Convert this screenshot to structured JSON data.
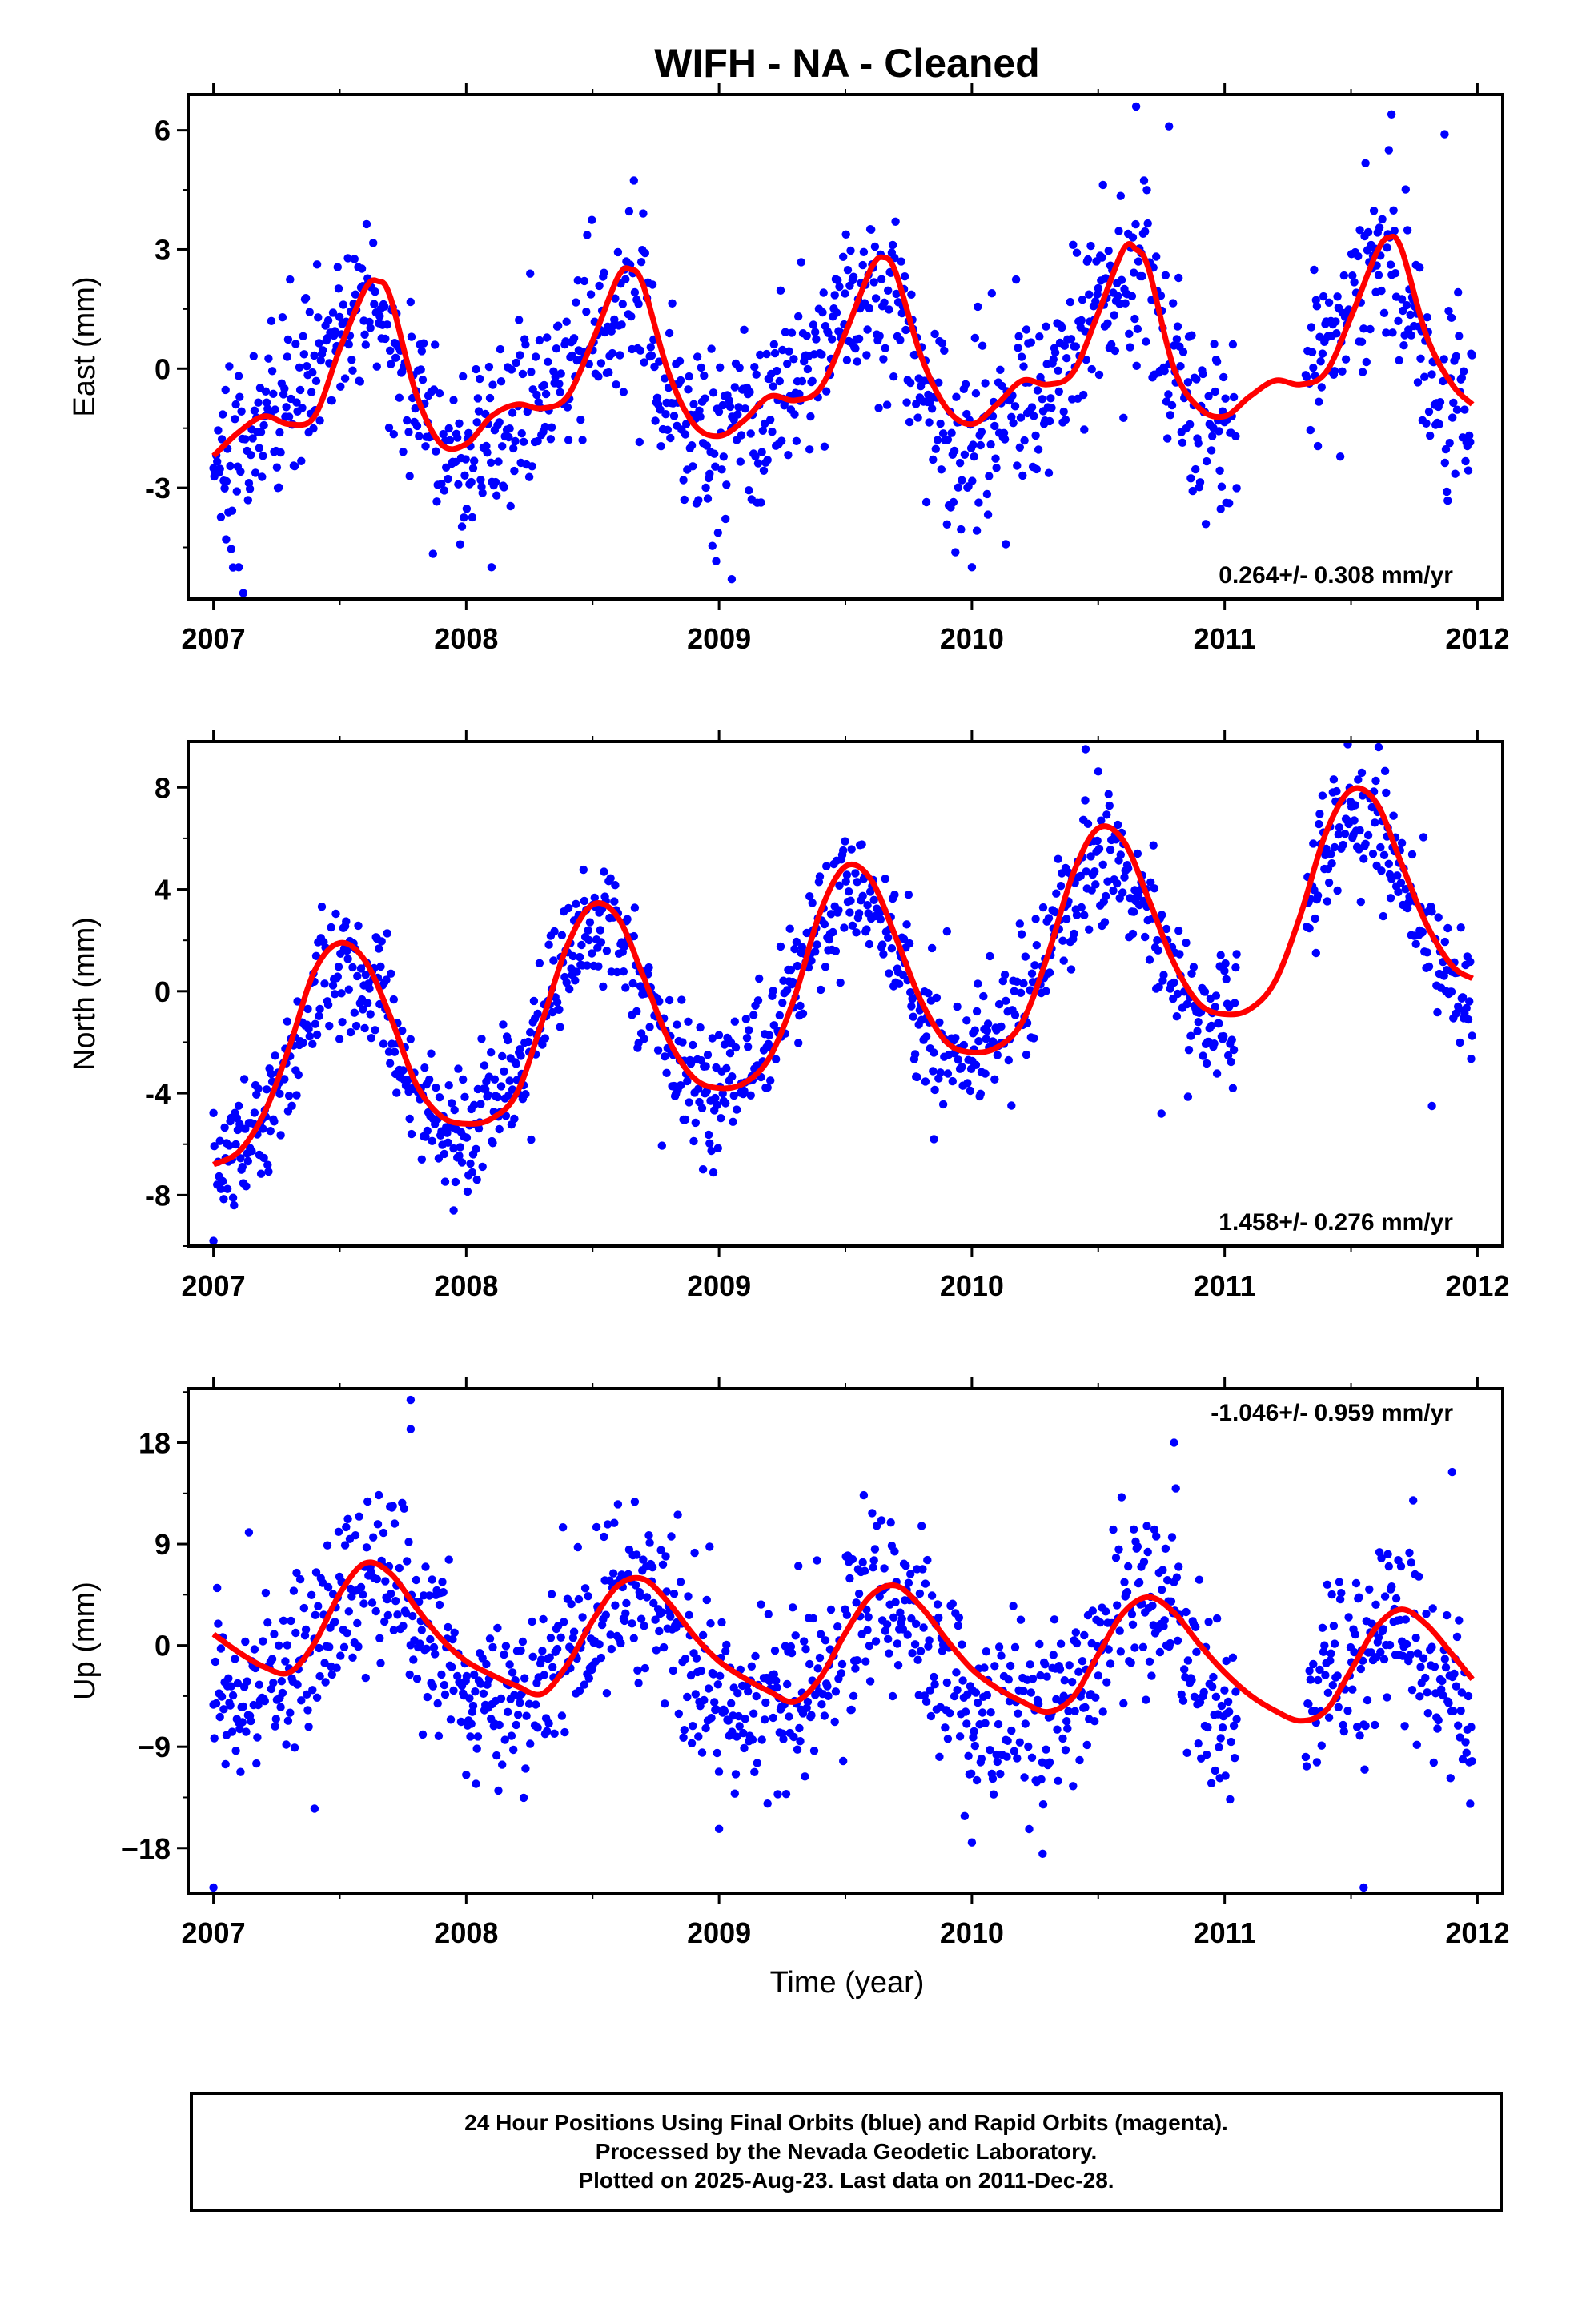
{
  "figure": {
    "title": "WIFH  - NA - Cleaned",
    "xlabel": "Time (year)"
  },
  "caption": {
    "line1": "24 Hour Positions Using Final Orbits (blue) and Rapid Orbits (magenta).",
    "line2": "Processed by the Nevada Geodetic Laboratory.",
    "line3": "Plotted on 2025-Aug-23. Last data on 2011-Dec-28."
  },
  "colors": {
    "observations": "#0000ff",
    "fit": "#ff0000",
    "frame": "#000000"
  },
  "chart_data": [
    {
      "type": "scatter",
      "ylabel": "East (mm)",
      "xlim": [
        2006.9,
        2012.1
      ],
      "ylim": [
        -5.8,
        6.9
      ],
      "yticks": [
        -3,
        0,
        3,
        6
      ],
      "yticklabels": [
        "-3",
        "0",
        "3",
        "6"
      ],
      "xticks": [
        2007,
        2008,
        2009,
        2010,
        2011,
        2012
      ],
      "rate_label": "0.264+/- 0.308 mm/yr",
      "rate_position": "bottom-right",
      "model": {
        "offset": -0.8,
        "rate": 0.264,
        "annual_amp": 1.75,
        "annual_phase_days": 205,
        "semi_amp": 0.55,
        "semi_phase_days": 50
      },
      "fit_x": [
        2007.0,
        2007.1,
        2007.2,
        2007.3,
        2007.4,
        2007.5,
        2007.6,
        2007.65,
        2007.7,
        2007.8,
        2007.9,
        2008.0,
        2008.1,
        2008.2,
        2008.3,
        2008.4,
        2008.5,
        2008.6,
        2008.65,
        2008.7,
        2008.8,
        2008.9,
        2009.0,
        2009.1,
        2009.2,
        2009.3,
        2009.4,
        2009.5,
        2009.6,
        2009.65,
        2009.7,
        2009.8,
        2009.9,
        2010.0,
        2010.1,
        2010.2,
        2010.3,
        2010.4,
        2010.5,
        2010.6,
        2010.65,
        2010.7,
        2010.8,
        2010.9,
        2011.0,
        2011.1,
        2011.2,
        2011.3,
        2011.4,
        2011.5,
        2011.6,
        2011.65,
        2011.7,
        2011.8,
        2011.9,
        2011.98
      ],
      "fit_y": [
        -2.2,
        -1.6,
        -1.2,
        -1.4,
        -1.2,
        0.5,
        2.0,
        2.2,
        1.8,
        -0.6,
        -1.9,
        -1.9,
        -1.2,
        -0.9,
        -1.0,
        -0.7,
        0.7,
        2.3,
        2.5,
        2.1,
        -0.1,
        -1.4,
        -1.7,
        -1.3,
        -0.7,
        -0.8,
        -0.5,
        0.9,
        2.5,
        2.8,
        2.4,
        0.3,
        -1.0,
        -1.4,
        -0.9,
        -0.3,
        -0.4,
        -0.1,
        1.4,
        3.0,
        3.0,
        2.5,
        0.0,
        -1.0,
        -1.2,
        -0.7,
        -0.3,
        -0.4,
        -0.1,
        1.3,
        2.9,
        3.3,
        3.0,
        0.8,
        -0.4,
        -0.9
      ],
      "data_gap": [
        2011.05,
        2011.32
      ],
      "outliers": [
        [
          2010.65,
          6.6
        ],
        [
          2010.78,
          6.1
        ],
        [
          2011.66,
          6.4
        ],
        [
          2011.87,
          5.9
        ],
        [
          2009.05,
          -5.3
        ],
        [
          2007.1,
          -5.0
        ],
        [
          2008.1,
          -5.0
        ],
        [
          2010.0,
          -5.0
        ],
        [
          2007.05,
          -4.3
        ]
      ]
    },
    {
      "type": "scatter",
      "ylabel": "North (mm)",
      "xlim": [
        2006.9,
        2012.1
      ],
      "ylim": [
        -10.0,
        9.8
      ],
      "yticks": [
        -8,
        -4,
        0,
        4,
        8
      ],
      "yticklabels": [
        "-8",
        "-4",
        "0",
        "4",
        "8"
      ],
      "xticks": [
        2007,
        2008,
        2009,
        2010,
        2011,
        2012
      ],
      "rate_label": "1.458+/- 0.276 mm/yr",
      "rate_position": "bottom-right",
      "model": {
        "offset": -3.6,
        "rate": 1.458,
        "annual_amp": 3.6,
        "annual_phase_days": 185,
        "semi_amp": 0.5,
        "semi_phase_days": 20
      },
      "fit_x": [
        2007.0,
        2007.1,
        2007.2,
        2007.3,
        2007.4,
        2007.5,
        2007.6,
        2007.7,
        2007.8,
        2007.9,
        2008.0,
        2008.1,
        2008.2,
        2008.3,
        2008.4,
        2008.5,
        2008.6,
        2008.7,
        2008.8,
        2008.9,
        2009.0,
        2009.1,
        2009.2,
        2009.3,
        2009.4,
        2009.5,
        2009.6,
        2009.7,
        2009.8,
        2009.9,
        2010.0,
        2010.1,
        2010.2,
        2010.3,
        2010.4,
        2010.5,
        2010.6,
        2010.7,
        2010.8,
        2010.9,
        2011.0,
        2011.1,
        2011.2,
        2011.3,
        2011.4,
        2011.5,
        2011.6,
        2011.7,
        2011.8,
        2011.9,
        2011.98
      ],
      "fit_y": [
        -6.8,
        -6.3,
        -4.8,
        -2.2,
        0.8,
        1.9,
        1.2,
        -1.0,
        -3.6,
        -4.9,
        -5.2,
        -5.0,
        -4.0,
        -1.2,
        1.8,
        3.4,
        2.9,
        0.6,
        -1.9,
        -3.4,
        -3.8,
        -3.6,
        -2.6,
        -0.2,
        3.1,
        4.9,
        4.4,
        2.1,
        -0.4,
        -2.0,
        -2.4,
        -2.2,
        -1.2,
        1.4,
        4.6,
        6.4,
        5.9,
        3.6,
        1.1,
        -0.5,
        -0.9,
        -0.7,
        0.4,
        3.0,
        6.2,
        7.9,
        7.4,
        5.0,
        2.6,
        1.0,
        0.5
      ],
      "data_gap": [
        2011.05,
        2011.32
      ],
      "outliers": [
        [
          2010.45,
          9.5
        ],
        [
          2007.0,
          -9.8
        ],
        [
          2007.95,
          -8.6
        ],
        [
          2009.85,
          -5.8
        ],
        [
          2010.75,
          -4.8
        ],
        [
          2011.82,
          -4.5
        ]
      ]
    },
    {
      "type": "scatter",
      "ylabel": "Up (mm)",
      "xlim": [
        2006.9,
        2012.1
      ],
      "ylim": [
        -22.0,
        22.8
      ],
      "yticks": [
        -18,
        -9,
        0,
        9,
        18
      ],
      "yticklabels": [
        "−18",
        "−9",
        "0",
        "9",
        "18"
      ],
      "xticks": [
        2007,
        2008,
        2009,
        2010,
        2011,
        2012
      ],
      "rate_label": "-1.046+/- 0.959 mm/yr",
      "rate_position": "top-right",
      "model": {
        "offset": 1.0,
        "rate": -1.046,
        "annual_amp": 5.5,
        "annual_phase_days": 240,
        "semi_amp": 1.0,
        "semi_phase_days": 80
      },
      "fit_x": [
        2007.0,
        2007.1,
        2007.2,
        2007.3,
        2007.4,
        2007.5,
        2007.6,
        2007.7,
        2007.8,
        2007.9,
        2008.0,
        2008.1,
        2008.2,
        2008.3,
        2008.4,
        2008.5,
        2008.6,
        2008.7,
        2008.8,
        2008.9,
        2009.0,
        2009.1,
        2009.2,
        2009.3,
        2009.4,
        2009.5,
        2009.6,
        2009.7,
        2009.8,
        2009.9,
        2010.0,
        2010.1,
        2010.2,
        2010.3,
        2010.4,
        2010.5,
        2010.6,
        2010.7,
        2010.8,
        2010.9,
        2011.0,
        2011.1,
        2011.2,
        2011.3,
        2011.4,
        2011.5,
        2011.6,
        2011.7,
        2011.8,
        2011.9,
        2011.98
      ],
      "fit_y": [
        1.0,
        -0.6,
        -1.9,
        -2.4,
        0.2,
        4.6,
        7.3,
        6.4,
        3.4,
        0.6,
        -1.4,
        -2.6,
        -3.6,
        -4.3,
        -1.7,
        2.2,
        5.3,
        5.9,
        3.8,
        0.9,
        -1.4,
        -2.9,
        -4.1,
        -5.0,
        -2.9,
        1.1,
        4.4,
        5.3,
        3.4,
        0.5,
        -2.1,
        -3.8,
        -5.0,
        -5.9,
        -4.6,
        -0.8,
        2.9,
        4.3,
        2.9,
        0.1,
        -2.4,
        -4.4,
        -5.8,
        -6.7,
        -5.8,
        -2.2,
        1.6,
        3.2,
        1.8,
        -0.8,
        -3.0
      ],
      "data_gap": [
        2011.05,
        2011.32
      ],
      "outliers": [
        [
          2007.78,
          21.8
        ],
        [
          2007.78,
          19.2
        ],
        [
          2010.8,
          18.0
        ],
        [
          2011.9,
          15.4
        ],
        [
          2007.0,
          -21.5
        ],
        [
          2011.55,
          -21.5
        ],
        [
          2010.28,
          -18.5
        ],
        [
          2009.0,
          -16.3
        ],
        [
          2010.0,
          -17.5
        ],
        [
          2007.4,
          -14.5
        ],
        [
          2008.0,
          -11.5
        ]
      ]
    }
  ]
}
